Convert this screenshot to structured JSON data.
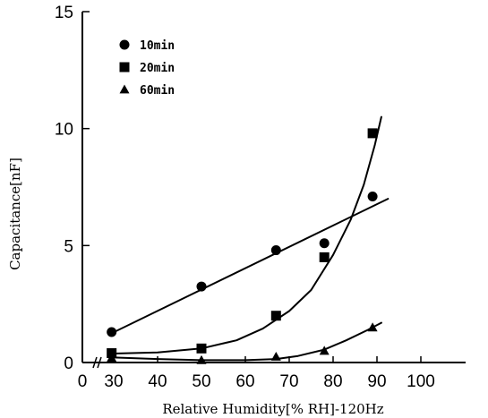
{
  "chart_data": {
    "type": "scatter",
    "title": "",
    "xlabel": "Relative Humidity[% RH]-120Hz",
    "ylabel": "Capacitance[nF]",
    "xlim": [
      0,
      100
    ],
    "ylim": [
      0,
      15
    ],
    "x_ticks": [
      "0",
      "30",
      "40",
      "50",
      "60",
      "70",
      "80",
      "90",
      "100"
    ],
    "y_ticks": [
      "0",
      "5",
      "10",
      "15"
    ],
    "axis_break": "x between 0 and 30",
    "grid": false,
    "legend_position": "top-left",
    "series": [
      {
        "name": "10min",
        "marker": "circle",
        "color": "#000000",
        "x": [
          28,
          50,
          67,
          78,
          89
        ],
        "y": [
          1.3,
          3.25,
          4.8,
          5.1,
          7.1
        ],
        "fit": "linear",
        "fit_curve": {
          "x": [
            28,
            92.5
          ],
          "y": [
            1.25,
            7.0
          ]
        }
      },
      {
        "name": "20min",
        "marker": "square",
        "color": "#000000",
        "x": [
          28,
          50,
          67,
          78,
          89
        ],
        "y": [
          0.4,
          0.6,
          2.0,
          4.5,
          9.8
        ],
        "fit": "exponential",
        "fit_curve": {
          "x": [
            28,
            40,
            50,
            58,
            64,
            70,
            75,
            80,
            84,
            87,
            89.5,
            91
          ],
          "y": [
            0.38,
            0.43,
            0.6,
            0.95,
            1.45,
            2.2,
            3.1,
            4.6,
            6.1,
            7.6,
            9.3,
            10.5
          ]
        }
      },
      {
        "name": "60min",
        "marker": "triangle",
        "color": "#000000",
        "x": [
          28,
          50,
          67,
          78,
          89
        ],
        "y": [
          0.2,
          0.1,
          0.25,
          0.5,
          1.5
        ],
        "fit": "polynomial",
        "fit_curve": {
          "x": [
            28,
            40,
            50,
            60,
            67,
            72,
            78,
            83,
            88,
            91
          ],
          "y": [
            0.22,
            0.15,
            0.1,
            0.1,
            0.15,
            0.28,
            0.55,
            0.95,
            1.4,
            1.7
          ]
        }
      }
    ]
  }
}
